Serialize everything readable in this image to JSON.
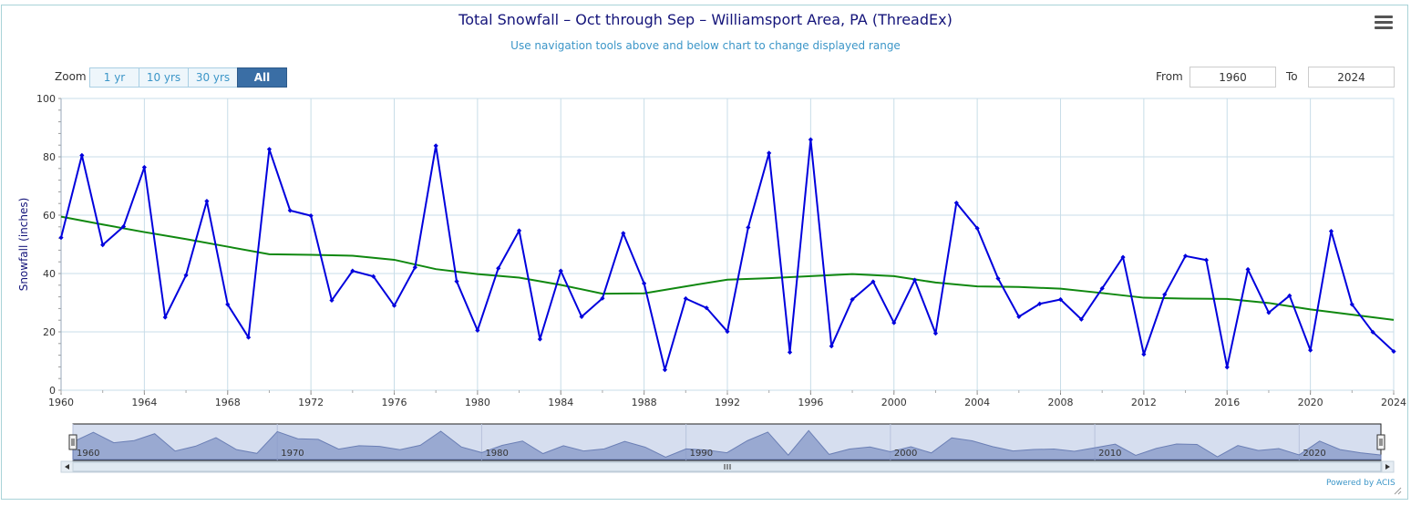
{
  "header": {
    "title": "Total Snowfall – Oct through Sep – Williamsport Area, PA (ThreadEx)",
    "subtitle": "Use navigation tools above and below chart to change displayed range"
  },
  "zoom": {
    "label": "Zoom",
    "buttons": [
      "1 yr",
      "10 yrs",
      "30 yrs",
      "All"
    ],
    "active": "All"
  },
  "range": {
    "from_label": "From",
    "from_value": "1960",
    "to_label": "To",
    "to_value": "2024"
  },
  "footer": {
    "powered_by": "Powered by ACIS"
  },
  "chart_data": {
    "type": "line",
    "title": "Total Snowfall – Oct through Sep – Williamsport Area, PA (ThreadEx)",
    "ylabel": "Snowfall (inches)",
    "xlabel": "",
    "xlim": [
      1960,
      2024
    ],
    "ylim": [
      0,
      100
    ],
    "x_ticks": [
      "1960",
      "1964",
      "1968",
      "1972",
      "1976",
      "1980",
      "1984",
      "1988",
      "1992",
      "1996",
      "2000",
      "2004",
      "2008",
      "2012",
      "2016",
      "2020",
      "2024"
    ],
    "y_ticks": [
      "0",
      "20",
      "40",
      "60",
      "80",
      "100"
    ],
    "grid": true,
    "legend": "none",
    "navigator_labels": [
      "1960",
      "1970",
      "1980",
      "1990",
      "2000",
      "2010",
      "2020"
    ],
    "series": [
      {
        "color": "#0000dd",
        "x": [
          1960,
          1961,
          1962,
          1963,
          1964,
          1965,
          1966,
          1967,
          1968,
          1969,
          1970,
          1971,
          1972,
          1973,
          1974,
          1975,
          1976,
          1977,
          1978,
          1979,
          1980,
          1981,
          1982,
          1983,
          1984,
          1985,
          1986,
          1987,
          1988,
          1989,
          1990,
          1991,
          1992,
          1993,
          1994,
          1995,
          1996,
          1997,
          1998,
          1999,
          2000,
          2001,
          2002,
          2003,
          2004,
          2005,
          2006,
          2007,
          2008,
          2009,
          2010,
          2011,
          2012,
          2013,
          2014,
          2015,
          2016,
          2017,
          2018,
          2019,
          2020,
          2021,
          2022,
          2023,
          2024
        ],
        "values": [
          52.3,
          80.5,
          49.8,
          56.1,
          76.4,
          25.0,
          39.4,
          64.8,
          29.4,
          18.1,
          82.6,
          61.6,
          59.8,
          30.8,
          40.9,
          39.0,
          29.0,
          42.1,
          83.8,
          37.3,
          20.5,
          41.8,
          54.7,
          17.5,
          40.9,
          25.2,
          31.5,
          53.8,
          36.6,
          7.0,
          31.4,
          28.2,
          20.1,
          55.8,
          81.3,
          13.0,
          85.9,
          15.1,
          31.1,
          37.2,
          23.1,
          37.8,
          19.5,
          64.2,
          55.5,
          38.3,
          25.2,
          29.6,
          31.1,
          24.3,
          34.9,
          45.6,
          12.3,
          32.8,
          46.0,
          44.6,
          7.9,
          41.4,
          26.6,
          32.4,
          13.7,
          54.5,
          29.4,
          19.9,
          13.3
        ]
      },
      {
        "color": "#108810",
        "x": [
          1960,
          1962,
          1964,
          1966,
          1968,
          1970,
          1972,
          1974,
          1976,
          1978,
          1980,
          1982,
          1984,
          1986,
          1988,
          1990,
          1992,
          1994,
          1996,
          1998,
          2000,
          2002,
          2004,
          2006,
          2008,
          2010,
          2012,
          2014,
          2016,
          2018,
          2020,
          2022,
          2024
        ],
        "values": [
          59.5,
          56.8,
          54.2,
          51.8,
          49.2,
          46.6,
          46.4,
          46.1,
          44.7,
          41.5,
          39.8,
          38.6,
          36.1,
          33.1,
          33.2,
          35.6,
          37.9,
          38.4,
          39.1,
          39.8,
          39.1,
          36.9,
          35.6,
          35.4,
          34.8,
          33.3,
          31.7,
          31.4,
          31.3,
          29.9,
          27.7,
          25.9,
          24.1
        ]
      }
    ]
  }
}
